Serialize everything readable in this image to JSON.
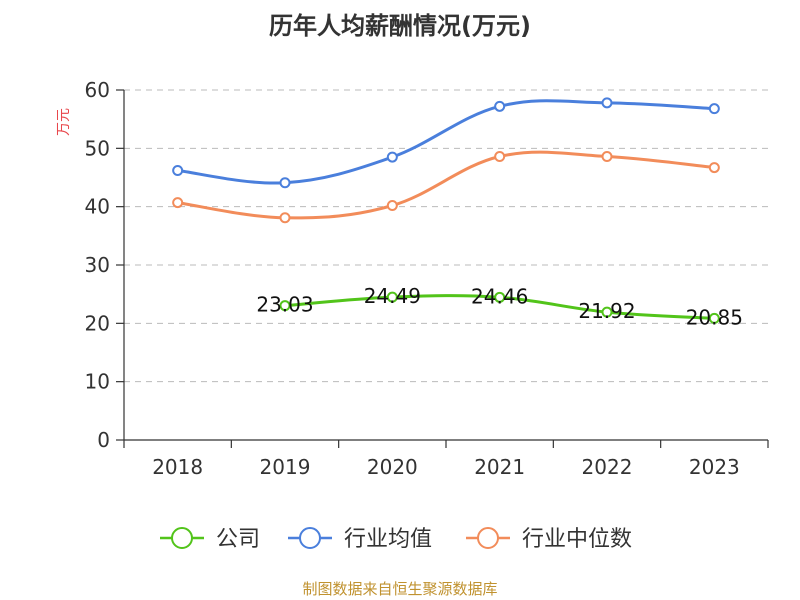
{
  "chart_data": {
    "type": "line",
    "title": "历年人均薪酬情况(万元)",
    "ylabel": "万元",
    "xlabel": "",
    "categories": [
      "2018",
      "2019",
      "2020",
      "2021",
      "2022",
      "2023"
    ],
    "ylim": [
      0,
      60
    ],
    "yticks": [
      0,
      10,
      20,
      30,
      40,
      50,
      60
    ],
    "grid": true,
    "legend_position": "bottom",
    "series": [
      {
        "name": "公司",
        "color": "#52c41a",
        "values": [
          null,
          23.03,
          24.49,
          24.46,
          21.92,
          20.85
        ],
        "labels": [
          "",
          "23.03",
          "24.49",
          "24.46",
          "21.92",
          "20.85"
        ]
      },
      {
        "name": "行业均值",
        "color": "#4a7fdc",
        "values": [
          46.2,
          44.1,
          48.5,
          57.2,
          57.8,
          56.8
        ]
      },
      {
        "name": "行业中位数",
        "color": "#f28c5a",
        "values": [
          40.7,
          38.1,
          40.2,
          48.6,
          48.6,
          46.7
        ]
      }
    ]
  },
  "source": "制图数据来自恒生聚源数据库"
}
